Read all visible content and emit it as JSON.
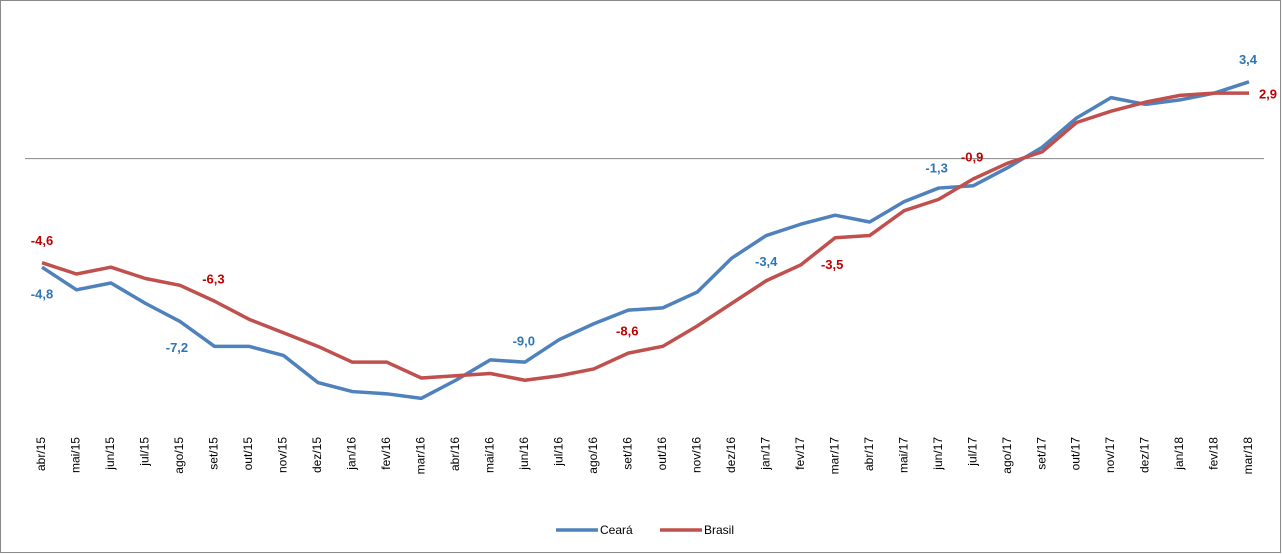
{
  "chart_data": {
    "type": "line",
    "categories": [
      "abr/15",
      "mai/15",
      "jun/15",
      "jul/15",
      "ago/15",
      "set/15",
      "out/15",
      "nov/15",
      "dez/15",
      "jan/16",
      "fev/16",
      "mar/16",
      "abr/16",
      "mai/16",
      "jun/16",
      "jul/16",
      "ago/16",
      "set/16",
      "out/16",
      "nov/16",
      "dez/16",
      "jan/17",
      "fev/17",
      "mar/17",
      "abr/17",
      "mai/17",
      "jun/17",
      "jul/17",
      "ago/17",
      "set/17",
      "out/17",
      "nov/17",
      "dez/17",
      "jan/18",
      "fev/18",
      "mar/18"
    ],
    "ylim": [
      -12,
      6
    ],
    "legend": "bottom",
    "series": [
      {
        "name": "Ceará",
        "color": "#4f81bd",
        "label_color": "#2e75b6",
        "values": [
          -4.8,
          -5.8,
          -5.5,
          -6.4,
          -7.2,
          -8.3,
          -8.3,
          -8.7,
          -9.9,
          -10.3,
          -10.4,
          -10.6,
          -9.8,
          -8.9,
          -9.0,
          -8.0,
          -7.3,
          -6.7,
          -6.6,
          -5.9,
          -4.4,
          -3.4,
          -2.9,
          -2.5,
          -2.8,
          -1.9,
          -1.3,
          -1.2,
          -0.4,
          0.5,
          1.8,
          2.7,
          2.4,
          2.6,
          2.9,
          3.4
        ],
        "value_labels": [
          "-4,8",
          null,
          null,
          null,
          "-7,2",
          null,
          null,
          null,
          null,
          null,
          null,
          null,
          null,
          null,
          "-9,0",
          null,
          null,
          null,
          null,
          null,
          null,
          "-3,4",
          null,
          null,
          null,
          null,
          "-1,3",
          null,
          null,
          null,
          null,
          null,
          null,
          null,
          null,
          "3,4"
        ]
      },
      {
        "name": "Brasil",
        "color": "#c0504d",
        "label_color": "#c00000",
        "values": [
          -4.6,
          -5.1,
          -4.8,
          -5.3,
          -5.6,
          -6.3,
          -7.1,
          -7.7,
          -8.3,
          -9.0,
          -9.0,
          -9.7,
          -9.6,
          -9.5,
          -9.8,
          -9.6,
          -9.3,
          -8.6,
          -8.3,
          -7.4,
          -6.4,
          -5.4,
          -4.7,
          -3.5,
          -3.4,
          -2.3,
          -1.8,
          -0.9,
          -0.2,
          0.3,
          1.6,
          2.1,
          2.5,
          2.8,
          2.9,
          2.9
        ],
        "value_labels": [
          "-4,6",
          null,
          null,
          null,
          null,
          "-6,3",
          null,
          null,
          null,
          null,
          null,
          null,
          null,
          null,
          null,
          null,
          null,
          "-8,6",
          null,
          null,
          null,
          null,
          null,
          "-3,5",
          null,
          null,
          null,
          "-0,9",
          null,
          null,
          null,
          null,
          null,
          null,
          null,
          "2,9"
        ]
      }
    ]
  }
}
